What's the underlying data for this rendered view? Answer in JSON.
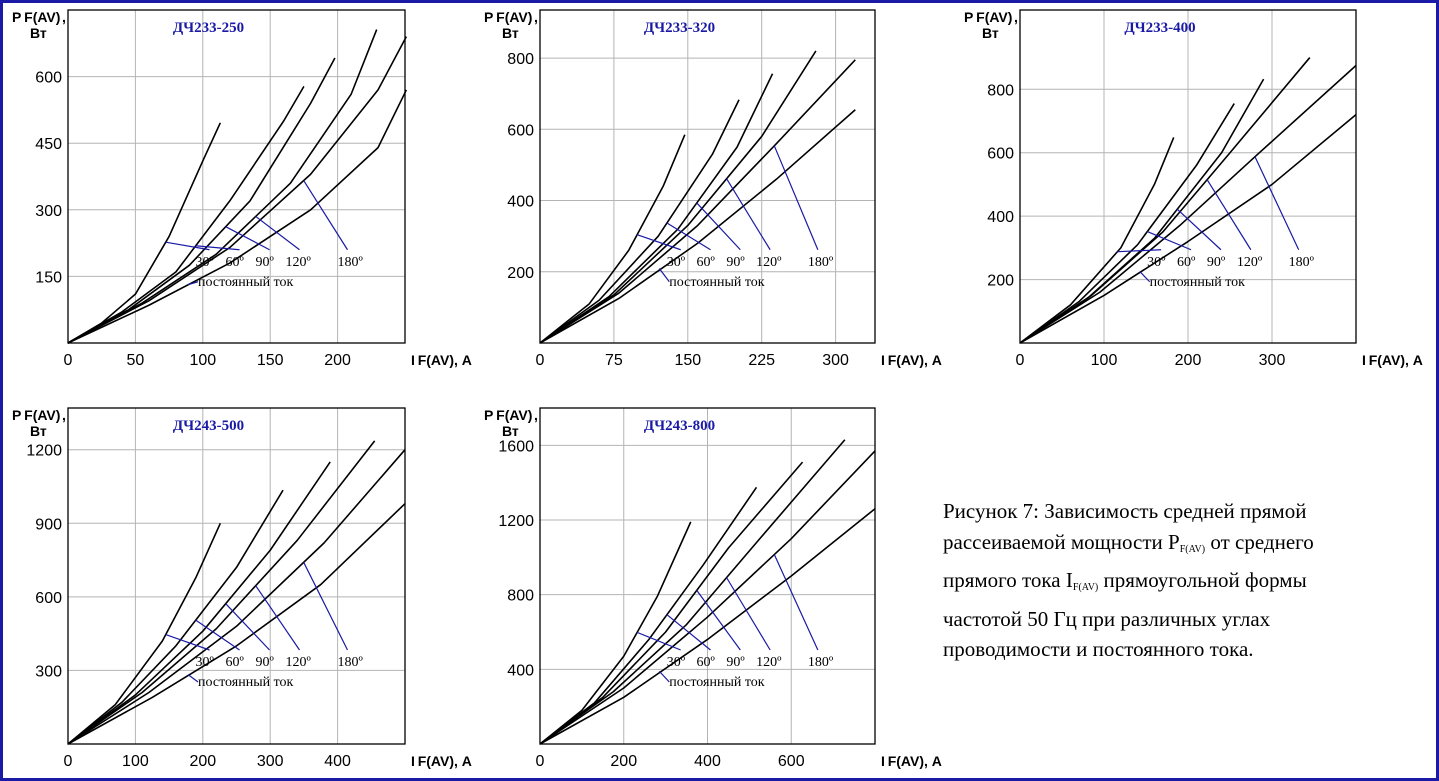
{
  "colors": {
    "axis": "#000000",
    "grid": "#b4b4b4",
    "title": "#1a1aa6",
    "leader": "#1a1aa6",
    "curve": "#000000",
    "border": "#1a1aa6"
  },
  "labels": {
    "y_label_top": "P F(AV)",
    "y_label_comma": ",",
    "y_label_unit": "Вт",
    "x_label": "I F(AV)",
    "x_label_unit": ", А",
    "angles": [
      "30º",
      "60º",
      "90º",
      "120º",
      "180º"
    ],
    "dc": "постоянный ток"
  },
  "caption": {
    "line1": "Рисунок 7: Зависимость средней прямой",
    "line2_a": "рассеиваемой мощности P",
    "line2_sub": "F(AV)",
    "line2_b": " от среднего",
    "line3_a": "прямого тока I",
    "line3_sub": "F(AV)",
    "line3_b": " прямоугольной формы",
    "line4": "частотой 50 Гц при различных углах",
    "line5": "проводимости и постоянного тока."
  },
  "chart_data": [
    {
      "type": "line",
      "title": "ДЧ233-250",
      "xlabel": "I F(AV), А",
      "ylabel": "P F(AV), Вт",
      "xlim": [
        0,
        250
      ],
      "ylim": [
        0,
        750
      ],
      "xticks": [
        0,
        50,
        100,
        150,
        200
      ],
      "yticks": [
        150,
        300,
        450,
        600
      ],
      "grid": true,
      "series": [
        {
          "name": "30º",
          "x": [
            0,
            25,
            50,
            75,
            100,
            113
          ],
          "y": [
            0,
            45,
            110,
            240,
            410,
            496
          ]
        },
        {
          "name": "60º",
          "x": [
            0,
            40,
            80,
            120,
            160,
            175
          ],
          "y": [
            0,
            70,
            160,
            320,
            500,
            578
          ]
        },
        {
          "name": "90º",
          "x": [
            0,
            45,
            90,
            135,
            180,
            198
          ],
          "y": [
            0,
            75,
            175,
            320,
            540,
            642
          ]
        },
        {
          "name": "120º",
          "x": [
            0,
            55,
            110,
            165,
            210,
            229
          ],
          "y": [
            0,
            90,
            200,
            360,
            560,
            706
          ]
        },
        {
          "name": "180º",
          "x": [
            0,
            60,
            120,
            180,
            230,
            251
          ],
          "y": [
            0,
            95,
            215,
            380,
            570,
            690
          ]
        },
        {
          "name": "постоянный ток",
          "x": [
            0,
            60,
            120,
            180,
            230,
            251
          ],
          "y": [
            0,
            85,
            180,
            300,
            440,
            570
          ]
        }
      ]
    },
    {
      "type": "line",
      "title": "ДЧ233-320",
      "xlabel": "I F(AV), А",
      "ylabel": "P F(AV), Вт",
      "xlim": [
        0,
        340
      ],
      "ylim": [
        0,
        935
      ],
      "xticks": [
        0,
        75,
        150,
        225,
        300
      ],
      "yticks": [
        200,
        400,
        600,
        800
      ],
      "grid": true,
      "series": [
        {
          "name": "30º",
          "x": [
            0,
            50,
            90,
            125,
            147
          ],
          "y": [
            0,
            110,
            260,
            440,
            585
          ]
        },
        {
          "name": "60º",
          "x": [
            0,
            60,
            120,
            175,
            202
          ],
          "y": [
            0,
            120,
            300,
            530,
            683
          ]
        },
        {
          "name": "90º",
          "x": [
            0,
            70,
            140,
            200,
            236
          ],
          "y": [
            0,
            130,
            320,
            550,
            756
          ]
        },
        {
          "name": "120º",
          "x": [
            0,
            75,
            150,
            225,
            280
          ],
          "y": [
            0,
            135,
            330,
            580,
            820
          ]
        },
        {
          "name": "180º",
          "x": [
            0,
            80,
            160,
            240,
            320
          ],
          "y": [
            0,
            140,
            330,
            560,
            795
          ]
        },
        {
          "name": "постоянный ток",
          "x": [
            0,
            80,
            160,
            240,
            320
          ],
          "y": [
            0,
            125,
            280,
            460,
            655
          ]
        }
      ]
    },
    {
      "type": "line",
      "title": "ДЧ233-400",
      "xlabel": "I F(AV), А",
      "ylabel": "P F(AV), Вт",
      "xlim": [
        0,
        400
      ],
      "ylim": [
        0,
        1050
      ],
      "xticks": [
        0,
        100,
        200,
        300
      ],
      "yticks": [
        200,
        400,
        600,
        800
      ],
      "grid": true,
      "series": [
        {
          "name": "30º",
          "x": [
            0,
            60,
            120,
            160,
            183
          ],
          "y": [
            0,
            120,
            300,
            500,
            648
          ]
        },
        {
          "name": "60º",
          "x": [
            0,
            70,
            140,
            210,
            255
          ],
          "y": [
            0,
            130,
            310,
            560,
            755
          ]
        },
        {
          "name": "90º",
          "x": [
            0,
            80,
            160,
            240,
            290
          ],
          "y": [
            0,
            140,
            330,
            600,
            832
          ]
        },
        {
          "name": "120º",
          "x": [
            0,
            85,
            170,
            250,
            345
          ],
          "y": [
            0,
            150,
            350,
            600,
            900
          ]
        },
        {
          "name": "180º",
          "x": [
            0,
            95,
            190,
            285,
            400
          ],
          "y": [
            0,
            160,
            370,
            600,
            875
          ]
        },
        {
          "name": "постоянный ток",
          "x": [
            0,
            100,
            200,
            300,
            400
          ],
          "y": [
            0,
            150,
            320,
            500,
            720
          ]
        }
      ]
    },
    {
      "type": "line",
      "title": "ДЧ243-500",
      "xlabel": "I F(AV), А",
      "ylabel": "P F(AV), Вт",
      "xlim": [
        0,
        500
      ],
      "ylim": [
        0,
        1370
      ],
      "xticks": [
        0,
        100,
        200,
        300,
        400
      ],
      "yticks": [
        300,
        600,
        900,
        1200
      ],
      "grid": true,
      "series": [
        {
          "name": "30º",
          "x": [
            0,
            70,
            140,
            190,
            226
          ],
          "y": [
            0,
            160,
            420,
            680,
            900
          ]
        },
        {
          "name": "60º",
          "x": [
            0,
            80,
            160,
            250,
            319
          ],
          "y": [
            0,
            170,
            400,
            720,
            1035
          ]
        },
        {
          "name": "90º",
          "x": [
            0,
            100,
            200,
            300,
            389
          ],
          "y": [
            0,
            200,
            460,
            790,
            1150
          ]
        },
        {
          "name": "120º",
          "x": [
            0,
            110,
            220,
            340,
            455
          ],
          "y": [
            0,
            210,
            470,
            830,
            1236
          ]
        },
        {
          "name": "180º",
          "x": [
            0,
            120,
            250,
            380,
            500
          ],
          "y": [
            0,
            210,
            480,
            820,
            1200
          ]
        },
        {
          "name": "постоянный ток",
          "x": [
            0,
            125,
            250,
            375,
            500
          ],
          "y": [
            0,
            190,
            400,
            650,
            980
          ]
        }
      ]
    },
    {
      "type": "line",
      "title": "ДЧ243-800",
      "xlabel": "I F(AV), А",
      "ylabel": "P F(AV), Вт",
      "xlim": [
        0,
        800
      ],
      "ylim": [
        0,
        1800
      ],
      "xticks": [
        0,
        200,
        400,
        600
      ],
      "yticks": [
        400,
        800,
        1200,
        1600
      ],
      "grid": true,
      "series": [
        {
          "name": "30º",
          "x": [
            0,
            100,
            200,
            280,
            360
          ],
          "y": [
            0,
            180,
            470,
            790,
            1190
          ]
        },
        {
          "name": "60º",
          "x": [
            0,
            130,
            260,
            390,
            517
          ],
          "y": [
            0,
            220,
            560,
            960,
            1375
          ]
        },
        {
          "name": "90º",
          "x": [
            0,
            150,
            300,
            450,
            627
          ],
          "y": [
            0,
            250,
            600,
            1050,
            1510
          ]
        },
        {
          "name": "120º",
          "x": [
            0,
            175,
            350,
            525,
            728
          ],
          "y": [
            0,
            280,
            640,
            1100,
            1630
          ]
        },
        {
          "name": "180º",
          "x": [
            0,
            200,
            400,
            600,
            800
          ],
          "y": [
            0,
            300,
            680,
            1100,
            1570
          ]
        },
        {
          "name": "постоянный ток",
          "x": [
            0,
            200,
            400,
            600,
            800
          ],
          "y": [
            0,
            250,
            560,
            900,
            1260
          ]
        }
      ]
    }
  ]
}
